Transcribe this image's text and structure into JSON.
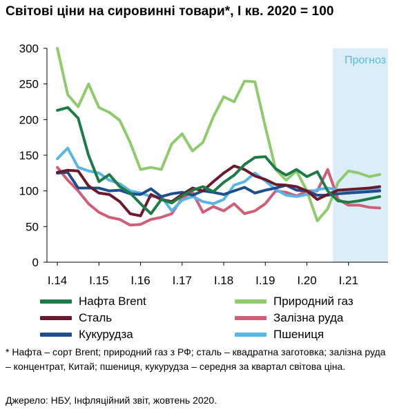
{
  "title": "Світові ціни на сировинні товари*, I кв. 2020 = 100",
  "footnote": "* Нафта – сорт Brent; природний газ з РФ; сталь – квадратна заготовка; залізна руда – концентрат, Китай; пшениця, кукурудза – середня за квартал світова ціна.",
  "source": "Джерело: НБУ, Інфляційний звіт, жовтень 2020.",
  "chart_data": {
    "type": "line",
    "forecast_label": "Прогноз",
    "forecast_start": 26.5,
    "forecast_color": "#dbeef8",
    "forecast_text_color": "#5bb8e0",
    "ylim": [
      0,
      300
    ],
    "yticks": [
      0,
      50,
      100,
      150,
      200,
      250,
      300
    ],
    "x_range": [
      -1,
      31.8
    ],
    "x_ticks": [
      {
        "label": "I.14",
        "x": 0
      },
      {
        "label": "I.15",
        "x": 4
      },
      {
        "label": "I.16",
        "x": 8
      },
      {
        "label": "I.17",
        "x": 12
      },
      {
        "label": "I.18",
        "x": 16
      },
      {
        "label": "I.19",
        "x": 20
      },
      {
        "label": "I.20",
        "x": 24
      },
      {
        "label": "I.21",
        "x": 28
      }
    ],
    "series": [
      {
        "name": "Нафта Brent",
        "color": "#1e7a46",
        "values": [
          213,
          217,
          202,
          150,
          113,
          123,
          106,
          97,
          82,
          68,
          88,
          83,
          93,
          101,
          106,
          99,
          112,
          122,
          137,
          147,
          148,
          131,
          122,
          130,
          120,
          127,
          100,
          86,
          84,
          86,
          89,
          92
        ]
      },
      {
        "name": "Природний газ",
        "color": "#8fcb6e",
        "values": [
          300,
          235,
          218,
          250,
          217,
          210,
          199,
          168,
          130,
          133,
          130,
          166,
          180,
          156,
          168,
          204,
          232,
          225,
          254,
          253,
          190,
          130,
          115,
          128,
          100,
          58,
          75,
          112,
          128,
          125,
          120,
          123
        ]
      },
      {
        "name": "Сталь",
        "color": "#6b1a2b",
        "values": [
          126,
          129,
          128,
          107,
          97,
          95,
          85,
          68,
          65,
          95,
          88,
          85,
          95,
          104,
          100,
          113,
          125,
          135,
          130,
          121,
          116,
          109,
          108,
          106,
          100,
          88,
          95,
          101,
          102,
          103,
          104,
          106
        ]
      },
      {
        "name": "Залізна руда",
        "color": "#cf5e77",
        "values": [
          133,
          115,
          100,
          82,
          70,
          63,
          60,
          52,
          53,
          60,
          63,
          68,
          90,
          98,
          70,
          78,
          72,
          82,
          68,
          72,
          82,
          100,
          98,
          93,
          100,
          100,
          130,
          88,
          80,
          80,
          77,
          76
        ]
      },
      {
        "name": "Кукурудза",
        "color": "#1f4e8c",
        "values": [
          125,
          126,
          104,
          104,
          104,
          100,
          101,
          96,
          95,
          103,
          92,
          96,
          98,
          94,
          100,
          98,
          95,
          100,
          105,
          97,
          101,
          104,
          108,
          101,
          100,
          94,
          94,
          96,
          97,
          98,
          99,
          100
        ]
      },
      {
        "name": "Пшениця",
        "color": "#58b6e6",
        "values": [
          145,
          160,
          133,
          128,
          125,
          115,
          110,
          100,
          97,
          92,
          92,
          72,
          87,
          92,
          85,
          82,
          88,
          108,
          113,
          125,
          114,
          102,
          94,
          92,
          95,
          102,
          104,
          101,
          100,
          100,
          101,
          102
        ]
      }
    ]
  }
}
